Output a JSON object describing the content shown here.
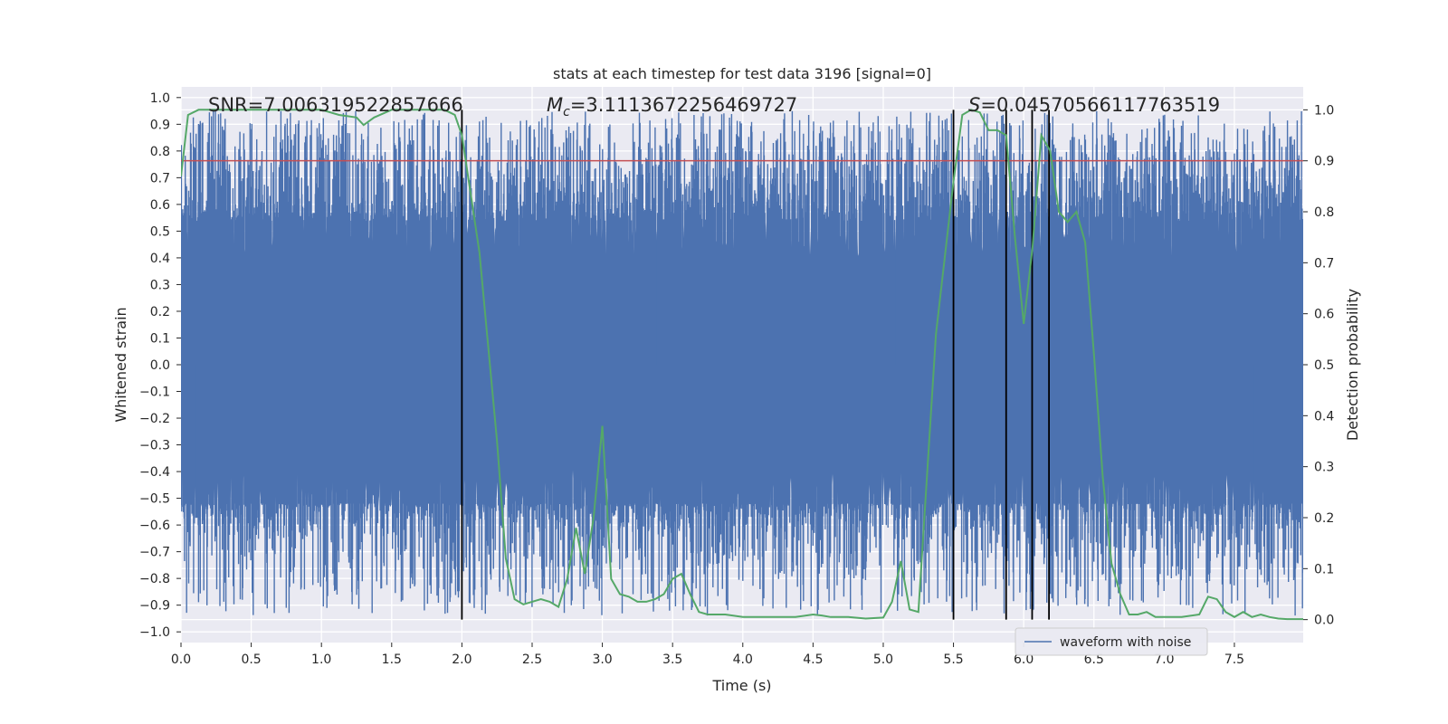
{
  "chart_data": {
    "type": "line",
    "title": "stats at each timestep for test data 3196 [signal=0]",
    "xlabel": "Time (s)",
    "ylabel": "Whitened strain",
    "y2label": "Detection probability",
    "xlim": [
      0.0,
      7.99
    ],
    "ylim": [
      -1.04,
      1.04
    ],
    "y2lim": [
      -0.045,
      1.045
    ],
    "xticks": [
      0.0,
      0.5,
      1.0,
      1.5,
      2.0,
      2.5,
      3.0,
      3.5,
      4.0,
      4.5,
      5.0,
      5.5,
      6.0,
      6.5,
      7.0,
      7.5
    ],
    "xtick_labels": [
      "0.0",
      "0.5",
      "1.0",
      "1.5",
      "2.0",
      "2.5",
      "3.0",
      "3.5",
      "4.0",
      "4.5",
      "5.0",
      "5.5",
      "6.0",
      "6.5",
      "7.0",
      "7.5"
    ],
    "yticks": [
      -1.0,
      -0.9,
      -0.8,
      -0.7,
      -0.6,
      -0.5,
      -0.4,
      -0.3,
      -0.2,
      -0.1,
      0.0,
      0.1,
      0.2,
      0.3,
      0.4,
      0.5,
      0.6,
      0.7,
      0.8,
      0.9,
      1.0
    ],
    "ytick_labels": [
      "−1.0",
      "−0.9",
      "−0.8",
      "−0.7",
      "−0.6",
      "−0.5",
      "−0.4",
      "−0.3",
      "−0.2",
      "−0.1",
      "0.0",
      "0.1",
      "0.2",
      "0.3",
      "0.4",
      "0.5",
      "0.6",
      "0.7",
      "0.8",
      "0.9",
      "1.0"
    ],
    "y2ticks": [
      0.0,
      0.1,
      0.2,
      0.3,
      0.4,
      0.5,
      0.6,
      0.7,
      0.8,
      0.9,
      1.0
    ],
    "y2tick_labels": [
      "0.0",
      "0.1",
      "0.2",
      "0.3",
      "0.4",
      "0.5",
      "0.6",
      "0.7",
      "0.8",
      "0.9",
      "1.0"
    ],
    "annotations": {
      "snr": "SNR=7.006319522857666",
      "mc_symbol": "M",
      "mc_sub": "c",
      "mc_value": "=3.1113672256469727",
      "s_symbol": "S",
      "s_value": "=0.04570566117763519"
    },
    "legend": {
      "label": "waveform with noise",
      "loc": "lower-right"
    },
    "threshold": {
      "y2": 0.9,
      "color": "#c44e52"
    },
    "vlines": {
      "x": [
        2.0,
        5.5,
        5.875,
        6.06,
        6.18
      ],
      "y2range": [
        0.0,
        1.0
      ],
      "color": "#000000"
    },
    "series": [
      {
        "name": "waveform with noise",
        "axis": "left",
        "color": "#4c72b0",
        "kind": "noise",
        "samples": 3200,
        "core_amplitude": 0.52,
        "peak_max": 0.95,
        "trough_min": -0.94
      },
      {
        "name": "detection probability",
        "axis": "right",
        "color": "#55a868",
        "x": [
          0.0,
          0.05,
          0.125,
          0.25,
          0.375,
          0.5,
          0.625,
          0.75,
          0.875,
          1.0,
          1.125,
          1.25,
          1.3,
          1.375,
          1.5,
          1.625,
          1.75,
          1.875,
          1.95,
          2.0,
          2.125,
          2.25,
          2.3125,
          2.375,
          2.4375,
          2.5,
          2.5625,
          2.625,
          2.6875,
          2.75,
          2.8125,
          2.875,
          2.9375,
          3.0,
          3.0625,
          3.125,
          3.1875,
          3.25,
          3.3125,
          3.375,
          3.4375,
          3.5,
          3.5625,
          3.625,
          3.6875,
          3.75,
          3.875,
          4.0,
          4.125,
          4.25,
          4.375,
          4.5,
          4.5625,
          4.625,
          4.75,
          4.875,
          5.0,
          5.0625,
          5.125,
          5.1875,
          5.25,
          5.375,
          5.4375,
          5.5,
          5.5625,
          5.625,
          5.6875,
          5.75,
          5.8125,
          5.875,
          5.9375,
          6.0,
          6.0625,
          6.125,
          6.1875,
          6.25,
          6.3125,
          6.375,
          6.4375,
          6.5,
          6.5625,
          6.625,
          6.6875,
          6.75,
          6.8125,
          6.875,
          6.9375,
          7.0,
          7.125,
          7.25,
          7.3125,
          7.375,
          7.4375,
          7.5,
          7.5625,
          7.625,
          7.6875,
          7.75,
          7.8125,
          7.875,
          7.99
        ],
        "y": [
          0.87,
          0.99,
          1.0,
          1.0,
          1.0,
          1.0,
          1.0,
          1.0,
          1.0,
          1.0,
          0.99,
          0.985,
          0.97,
          0.985,
          1.0,
          1.0,
          1.0,
          1.0,
          0.99,
          0.95,
          0.72,
          0.35,
          0.12,
          0.04,
          0.03,
          0.035,
          0.04,
          0.035,
          0.025,
          0.08,
          0.18,
          0.09,
          0.2,
          0.38,
          0.08,
          0.05,
          0.045,
          0.035,
          0.035,
          0.04,
          0.05,
          0.08,
          0.09,
          0.05,
          0.015,
          0.01,
          0.01,
          0.005,
          0.005,
          0.005,
          0.005,
          0.01,
          0.008,
          0.005,
          0.005,
          0.002,
          0.004,
          0.035,
          0.115,
          0.02,
          0.015,
          0.56,
          0.71,
          0.86,
          0.99,
          1.0,
          0.995,
          0.96,
          0.96,
          0.95,
          0.75,
          0.58,
          0.73,
          0.95,
          0.92,
          0.8,
          0.78,
          0.8,
          0.74,
          0.52,
          0.28,
          0.11,
          0.05,
          0.01,
          0.01,
          0.015,
          0.005,
          0.005,
          0.005,
          0.01,
          0.045,
          0.04,
          0.015,
          0.005,
          0.015,
          0.005,
          0.01,
          0.005,
          0.002,
          0.001,
          0.001
        ]
      }
    ]
  }
}
